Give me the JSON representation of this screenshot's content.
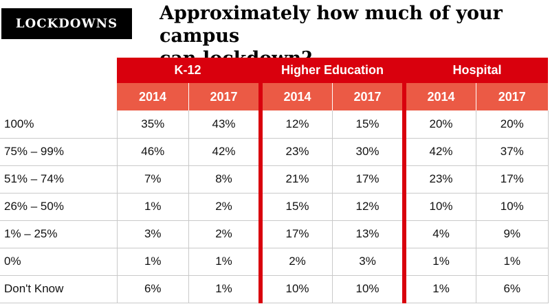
{
  "tag": "LOCKDOWNS",
  "title_line1": "Approximately how much of your campus",
  "title_line2": "can lockdown?",
  "colors": {
    "group_header": "#d9000d",
    "year_header": "#eb5a45",
    "separator": "#d9000d"
  },
  "chart_data": {
    "type": "table",
    "groups": [
      "K-12",
      "Higher Education",
      "Hospital"
    ],
    "years": [
      "2014",
      "2017"
    ],
    "columns": [
      "K-12 2014",
      "K-12 2017",
      "Higher Education 2014",
      "Higher Education 2017",
      "Hospital 2014",
      "Hospital 2017"
    ],
    "rows": [
      {
        "label": "100%",
        "values": [
          "35%",
          "43%",
          "12%",
          "15%",
          "20%",
          "20%"
        ]
      },
      {
        "label": "75% – 99%",
        "values": [
          "46%",
          "42%",
          "23%",
          "30%",
          "42%",
          "37%"
        ]
      },
      {
        "label": "51% – 74%",
        "values": [
          "7%",
          "8%",
          "21%",
          "17%",
          "23%",
          "17%"
        ]
      },
      {
        "label": "26% – 50%",
        "values": [
          "1%",
          "2%",
          "15%",
          "12%",
          "10%",
          "10%"
        ]
      },
      {
        "label": "1% – 25%",
        "values": [
          "3%",
          "2%",
          "17%",
          "13%",
          "4%",
          "9%"
        ]
      },
      {
        "label": "0%",
        "values": [
          "1%",
          "1%",
          "2%",
          "3%",
          "1%",
          "1%"
        ]
      },
      {
        "label": "Don't Know",
        "values": [
          "6%",
          "1%",
          "10%",
          "10%",
          "1%",
          "6%"
        ]
      }
    ]
  }
}
